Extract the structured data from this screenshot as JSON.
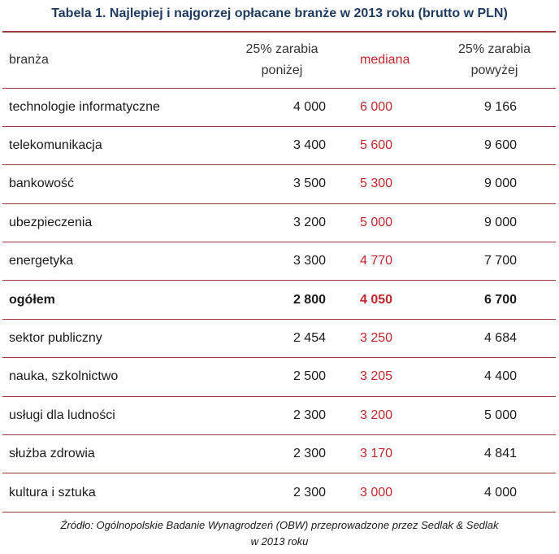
{
  "title": "Tabela 1. Najlepiej i najgorzej opłacane branże w 2013 roku (brutto w PLN)",
  "header": {
    "branza": "branża",
    "p25_line1": "25% zarabia",
    "p25_line2": "poniżej",
    "median": "mediana",
    "p75_line1": "25% zarabia",
    "p75_line2": "powyżej"
  },
  "rows": [
    {
      "branza": "technologie informatyczne",
      "p25": "4 000",
      "median": "6 000",
      "p75": "9 166"
    },
    {
      "branza": "telekomunikacja",
      "p25": "3 400",
      "median": "5 600",
      "p75": "9 600"
    },
    {
      "branza": "bankowość",
      "p25": "3 500",
      "median": "5 300",
      "p75": "9 000"
    },
    {
      "branza": "ubezpieczenia",
      "p25": "3 200",
      "median": "5 000",
      "p75": "9 000"
    },
    {
      "branza": "energetyka",
      "p25": "3 300",
      "median": "4 770",
      "p75": "7 700"
    },
    {
      "branza": "ogółem",
      "p25": "2 800",
      "median": "4 050",
      "p75": "6 700"
    },
    {
      "branza": "sektor publiczny",
      "p25": "2 454",
      "median": "3 250",
      "p75": "4 684"
    },
    {
      "branza": "nauka, szkolnictwo",
      "p25": "2 500",
      "median": "3 205",
      "p75": "4 400"
    },
    {
      "branza": "usługi dla ludności",
      "p25": "2 300",
      "median": "3 200",
      "p75": "5 000"
    },
    {
      "branza": "służba zdrowia",
      "p25": "2 300",
      "median": "3 170",
      "p75": "4 841"
    },
    {
      "branza": "kultura i sztuka",
      "p25": "2 300",
      "median": "3 000",
      "p75": "4 000"
    }
  ],
  "source_line1": "Źródło: Ogólnopolskie Badanie Wynagrodzeń (OBW) przeprowadzone przez Sedlak & Sedlak",
  "source_line2": "w 2013 roku",
  "colors": {
    "title": "#1f3a5f",
    "median": "#c0272d",
    "rule": "#9b3a3a"
  }
}
